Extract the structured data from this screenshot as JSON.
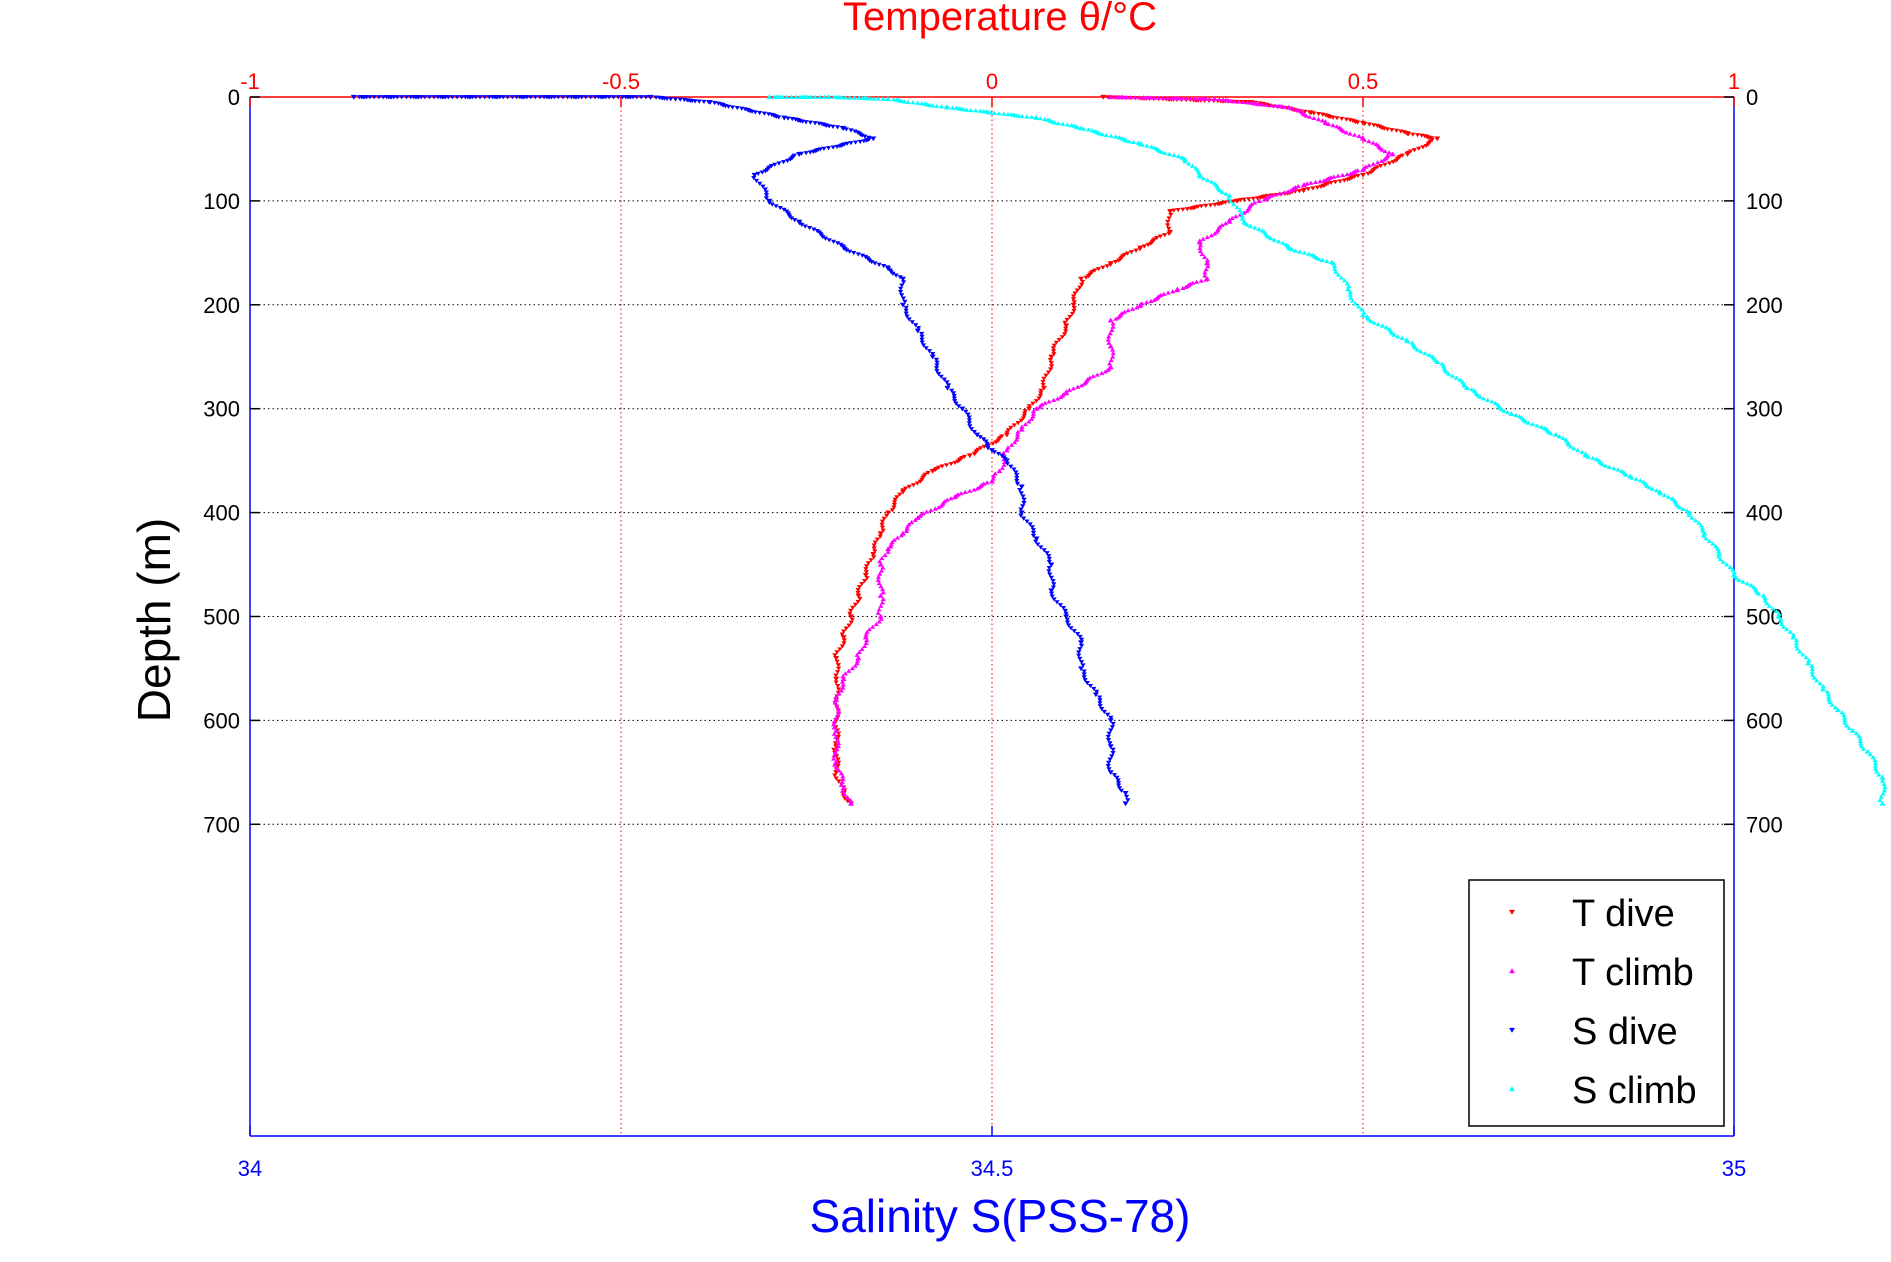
{
  "chart_data": {
    "type": "scatter",
    "title": "",
    "top_axis": {
      "label": "Temperature θ/°C",
      "range": [
        -1,
        1
      ],
      "ticks": [
        -1,
        -0.5,
        0,
        0.5,
        1
      ],
      "tick_labels": [
        "-1",
        "-0.5",
        "0",
        "0.5",
        "1"
      ],
      "color": "#ff0000"
    },
    "bottom_axis": {
      "label": "Salinity S(PSS-78)",
      "range": [
        34,
        35
      ],
      "ticks": [
        34,
        34.5,
        35
      ],
      "tick_labels": [
        "34",
        "34.5",
        "35"
      ],
      "color": "#0000ff"
    },
    "y_axis": {
      "label": "Depth (m)",
      "range": [
        0,
        1000
      ],
      "reversed": true,
      "ticks": [
        0,
        100,
        200,
        300,
        400,
        500,
        600,
        700
      ],
      "tick_labels": [
        "0",
        "100",
        "200",
        "300",
        "400",
        "500",
        "600",
        "700"
      ]
    },
    "grid": true,
    "legend_position": "bottom-right",
    "series": [
      {
        "name": "T dive",
        "axis": "temperature",
        "color": "#ff0000",
        "marker": "triangle-down",
        "points": [
          [
            0.15,
            0
          ],
          [
            0.35,
            5
          ],
          [
            0.43,
            15
          ],
          [
            0.5,
            25
          ],
          [
            0.56,
            35
          ],
          [
            0.6,
            40
          ],
          [
            0.56,
            55
          ],
          [
            0.5,
            75
          ],
          [
            0.42,
            90
          ],
          [
            0.33,
            100
          ],
          [
            0.24,
            110
          ],
          [
            0.24,
            130
          ],
          [
            0.2,
            145
          ],
          [
            0.16,
            160
          ],
          [
            0.12,
            175
          ],
          [
            0.11,
            200
          ],
          [
            0.1,
            220
          ],
          [
            0.08,
            250
          ],
          [
            0.07,
            280
          ],
          [
            0.05,
            300
          ],
          [
            0.02,
            325
          ],
          [
            -0.03,
            345
          ],
          [
            -0.08,
            360
          ],
          [
            -0.12,
            380
          ],
          [
            -0.14,
            400
          ],
          [
            -0.15,
            420
          ],
          [
            -0.16,
            440
          ],
          [
            -0.17,
            460
          ],
          [
            -0.18,
            480
          ],
          [
            -0.19,
            500
          ],
          [
            -0.2,
            520
          ],
          [
            -0.21,
            540
          ],
          [
            -0.21,
            560
          ],
          [
            -0.21,
            580
          ],
          [
            -0.21,
            600
          ],
          [
            -0.21,
            625
          ],
          [
            -0.21,
            650
          ],
          [
            -0.2,
            670
          ],
          [
            -0.19,
            680
          ]
        ]
      },
      {
        "name": "T climb",
        "axis": "temperature",
        "color": "#ff00ff",
        "marker": "triangle-up",
        "points": [
          [
            0.16,
            0
          ],
          [
            0.3,
            2
          ],
          [
            0.4,
            10
          ],
          [
            0.45,
            25
          ],
          [
            0.5,
            40
          ],
          [
            0.54,
            55
          ],
          [
            0.5,
            70
          ],
          [
            0.42,
            85
          ],
          [
            0.36,
            100
          ],
          [
            0.32,
            120
          ],
          [
            0.28,
            140
          ],
          [
            0.29,
            160
          ],
          [
            0.29,
            175
          ],
          [
            0.25,
            185
          ],
          [
            0.2,
            200
          ],
          [
            0.16,
            215
          ],
          [
            0.16,
            240
          ],
          [
            0.16,
            260
          ],
          [
            0.1,
            285
          ],
          [
            0.06,
            300
          ],
          [
            0.04,
            320
          ],
          [
            0.02,
            340
          ],
          [
            0.01,
            360
          ],
          [
            0.0,
            370
          ],
          [
            -0.05,
            385
          ],
          [
            -0.1,
            405
          ],
          [
            -0.12,
            420
          ],
          [
            -0.14,
            435
          ],
          [
            -0.15,
            450
          ],
          [
            -0.15,
            480
          ],
          [
            -0.15,
            500
          ],
          [
            -0.17,
            520
          ],
          [
            -0.18,
            540
          ],
          [
            -0.2,
            560
          ],
          [
            -0.21,
            580
          ],
          [
            -0.21,
            610
          ],
          [
            -0.21,
            640
          ],
          [
            -0.2,
            665
          ],
          [
            -0.19,
            680
          ]
        ]
      },
      {
        "name": "S dive",
        "axis": "salinity",
        "color": "#0000ff",
        "marker": "triangle-down",
        "points": [
          [
            34.07,
            0
          ],
          [
            34.27,
            0
          ],
          [
            34.31,
            5
          ],
          [
            34.36,
            20
          ],
          [
            34.4,
            30
          ],
          [
            34.42,
            40
          ],
          [
            34.37,
            55
          ],
          [
            34.34,
            75
          ],
          [
            34.35,
            100
          ],
          [
            34.37,
            120
          ],
          [
            34.4,
            145
          ],
          [
            34.43,
            165
          ],
          [
            34.44,
            175
          ],
          [
            34.44,
            200
          ],
          [
            34.45,
            225
          ],
          [
            34.46,
            250
          ],
          [
            34.47,
            280
          ],
          [
            34.48,
            300
          ],
          [
            34.49,
            325
          ],
          [
            34.5,
            340
          ],
          [
            34.51,
            350
          ],
          [
            34.52,
            375
          ],
          [
            34.52,
            400
          ],
          [
            34.53,
            425
          ],
          [
            34.54,
            450
          ],
          [
            34.54,
            475
          ],
          [
            34.55,
            500
          ],
          [
            34.56,
            525
          ],
          [
            34.56,
            550
          ],
          [
            34.57,
            575
          ],
          [
            34.58,
            600
          ],
          [
            34.58,
            625
          ],
          [
            34.58,
            650
          ],
          [
            34.59,
            670
          ],
          [
            34.59,
            680
          ]
        ]
      },
      {
        "name": "S climb",
        "axis": "salinity",
        "color": "#00ffff",
        "marker": "triangle-up",
        "points": [
          [
            34.35,
            0
          ],
          [
            34.39,
            0
          ],
          [
            34.43,
            2
          ],
          [
            34.47,
            10
          ],
          [
            34.53,
            20
          ],
          [
            34.56,
            30
          ],
          [
            34.6,
            45
          ],
          [
            34.63,
            60
          ],
          [
            34.64,
            75
          ],
          [
            34.66,
            95
          ],
          [
            34.67,
            120
          ],
          [
            34.7,
            145
          ],
          [
            34.73,
            160
          ],
          [
            34.74,
            185
          ],
          [
            34.75,
            210
          ],
          [
            34.78,
            235
          ],
          [
            34.8,
            255
          ],
          [
            34.82,
            280
          ],
          [
            34.85,
            305
          ],
          [
            34.88,
            325
          ],
          [
            34.9,
            345
          ],
          [
            34.93,
            365
          ],
          [
            34.95,
            380
          ],
          [
            34.97,
            400
          ],
          [
            34.98,
            420
          ],
          [
            34.99,
            440
          ],
          [
            35.0,
            460
          ],
          [
            35.02,
            480
          ],
          [
            35.03,
            500
          ],
          [
            35.04,
            520
          ],
          [
            35.05,
            545
          ],
          [
            35.06,
            570
          ],
          [
            35.07,
            590
          ],
          [
            35.08,
            610
          ],
          [
            35.09,
            630
          ],
          [
            35.1,
            655
          ],
          [
            35.1,
            680
          ]
        ]
      }
    ]
  }
}
